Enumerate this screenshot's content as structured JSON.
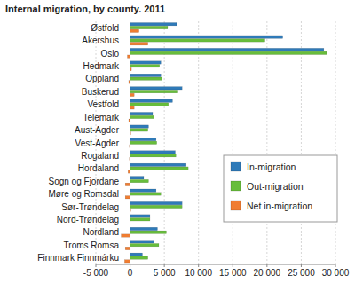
{
  "chart_data": {
    "type": "bar",
    "orientation": "horizontal",
    "title": "Internal migration, by county. 2011",
    "categories": [
      "Østfold",
      "Akershus",
      "Oslo",
      "Hedmark",
      "Oppland",
      "Buskerud",
      "Vestfold",
      "Telemark",
      "Aust-Agder",
      "Vest-Agder",
      "Rogaland",
      "Hordaland",
      "Sogn og Fjordane",
      "Møre og Romsdal",
      "Sør-Trøndelag",
      "Nord-Trøndelag",
      "Nordland",
      "Troms Romsa",
      "Finnmark Finnmárku"
    ],
    "series": [
      {
        "name": "In-migration",
        "color": "#2f7ab8",
        "values": [
          6800,
          22300,
          28300,
          4500,
          4500,
          7600,
          6200,
          3300,
          2700,
          3800,
          6600,
          8200,
          2000,
          3800,
          7600,
          2900,
          4000,
          3500,
          1800
        ]
      },
      {
        "name": "Out-migration",
        "color": "#67bd3b",
        "values": [
          5500,
          19700,
          28700,
          4300,
          4700,
          7000,
          5600,
          3500,
          2600,
          3900,
          6700,
          8500,
          2700,
          4500,
          7600,
          2900,
          5300,
          4200,
          2600
        ]
      },
      {
        "name": "Net in-migration",
        "color": "#f07d31",
        "values": [
          1300,
          2600,
          -400,
          200,
          -200,
          600,
          600,
          -200,
          100,
          -100,
          -100,
          -300,
          -700,
          -700,
          100,
          0,
          -1300,
          -700,
          -800
        ]
      }
    ],
    "xlim": [
      -5000,
      30000
    ],
    "xticks": [
      {
        "value": -5000,
        "label": "-5 000"
      },
      0,
      {
        "value": 5000,
        "label": "5 000"
      },
      {
        "value": 10000,
        "label": "10 000"
      },
      {
        "value": 15000,
        "label": "15 000"
      },
      {
        "value": 20000,
        "label": "20 000"
      },
      {
        "value": 25000,
        "label": "25 000"
      },
      {
        "value": 30000,
        "label": "30 000"
      }
    ],
    "grid": true,
    "legend": "right"
  }
}
